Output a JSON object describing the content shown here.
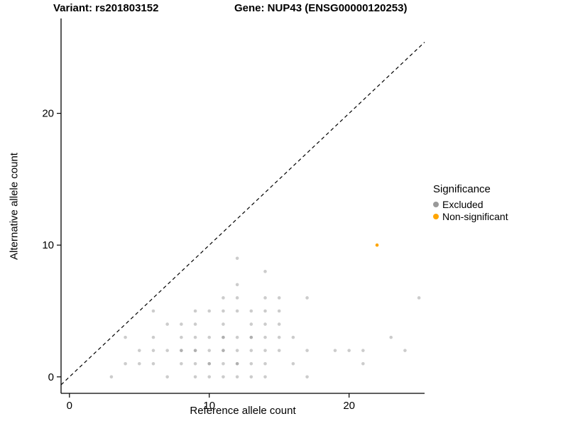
{
  "chart_data": {
    "type": "scatter",
    "title_left": "Variant: rs201803152",
    "title_right": "Gene: NUP43 (ENSG00000120253)",
    "xlabel": "Reference allele count",
    "ylabel": "Alternative allele count",
    "xlim": [
      -0.6,
      25.4
    ],
    "ylim": [
      -1.25,
      27.2
    ],
    "xticks": [
      0,
      10,
      20
    ],
    "yticks": [
      0,
      10,
      20
    ],
    "grid": false,
    "identity_line": {
      "style": "dashed",
      "color": "#000000"
    },
    "legend": {
      "title": "Significance",
      "position": "right",
      "items": [
        {
          "label": "Excluded",
          "color": "#999999"
        },
        {
          "label": "Non-significant",
          "color": "#FFA500"
        }
      ]
    },
    "series": [
      {
        "name": "Excluded",
        "color": "#8f8f8f",
        "opacity": 0.45,
        "points": [
          [
            3,
            0
          ],
          [
            7,
            0
          ],
          [
            9,
            0
          ],
          [
            10,
            0
          ],
          [
            11,
            0
          ],
          [
            12,
            0
          ],
          [
            13,
            0
          ],
          [
            14,
            0
          ],
          [
            17,
            0
          ],
          [
            4,
            1
          ],
          [
            5,
            1
          ],
          [
            6,
            1
          ],
          [
            8,
            1
          ],
          [
            9,
            1
          ],
          [
            10,
            1
          ],
          [
            10,
            1
          ],
          [
            11,
            1
          ],
          [
            12,
            1
          ],
          [
            12,
            1
          ],
          [
            13,
            1
          ],
          [
            14,
            1
          ],
          [
            16,
            1
          ],
          [
            21,
            1
          ],
          [
            5,
            2
          ],
          [
            6,
            2
          ],
          [
            7,
            2
          ],
          [
            8,
            2
          ],
          [
            8,
            2
          ],
          [
            9,
            2
          ],
          [
            9,
            2
          ],
          [
            10,
            2
          ],
          [
            11,
            2
          ],
          [
            11,
            2
          ],
          [
            12,
            2
          ],
          [
            13,
            2
          ],
          [
            14,
            2
          ],
          [
            15,
            2
          ],
          [
            17,
            2
          ],
          [
            19,
            2
          ],
          [
            20,
            2
          ],
          [
            21,
            2
          ],
          [
            24,
            2
          ],
          [
            4,
            3
          ],
          [
            6,
            3
          ],
          [
            8,
            3
          ],
          [
            9,
            3
          ],
          [
            10,
            3
          ],
          [
            11,
            3
          ],
          [
            11,
            3
          ],
          [
            12,
            3
          ],
          [
            13,
            3
          ],
          [
            13,
            3
          ],
          [
            14,
            3
          ],
          [
            15,
            3
          ],
          [
            16,
            3
          ],
          [
            23,
            3
          ],
          [
            7,
            4
          ],
          [
            8,
            4
          ],
          [
            9,
            4
          ],
          [
            11,
            4
          ],
          [
            13,
            4
          ],
          [
            14,
            4
          ],
          [
            15,
            4
          ],
          [
            6,
            5
          ],
          [
            9,
            5
          ],
          [
            10,
            5
          ],
          [
            11,
            5
          ],
          [
            12,
            5
          ],
          [
            13,
            5
          ],
          [
            14,
            5
          ],
          [
            15,
            5
          ],
          [
            11,
            6
          ],
          [
            12,
            6
          ],
          [
            14,
            6
          ],
          [
            15,
            6
          ],
          [
            17,
            6
          ],
          [
            25,
            6
          ],
          [
            12,
            7
          ],
          [
            14,
            8
          ],
          [
            12,
            9
          ]
        ]
      },
      {
        "name": "Non-significant",
        "color": "#FFA500",
        "opacity": 1,
        "points": [
          [
            22,
            10
          ]
        ]
      }
    ]
  }
}
